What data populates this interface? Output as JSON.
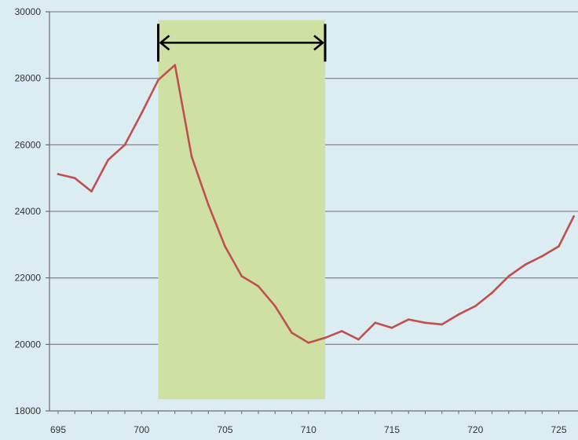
{
  "chart_data": {
    "type": "line",
    "title": "",
    "xlabel": "",
    "ylabel": "",
    "xlim": [
      694.5,
      725.9
    ],
    "ylim": [
      18000,
      30000
    ],
    "x_ticks": [
      695,
      700,
      705,
      710,
      715,
      720,
      725
    ],
    "y_ticks": [
      18000,
      20000,
      22000,
      24000,
      26000,
      28000,
      30000
    ],
    "x_tick_labels": [
      "695",
      "700",
      "705",
      "710",
      "715",
      "720",
      "725"
    ],
    "y_tick_labels": [
      "18000",
      "20000",
      "22000",
      "24000",
      "26000",
      "28000",
      "30000"
    ],
    "grid": "horizontal",
    "legend": "none",
    "series": [
      {
        "color": "#c0504d",
        "x": [
          695,
          696,
          697,
          698,
          699,
          700,
          701,
          702,
          703,
          704,
          705,
          706,
          707,
          708,
          709,
          710,
          711,
          712,
          713,
          714,
          715,
          716,
          717,
          718,
          719,
          720,
          721,
          722,
          723,
          724,
          725,
          725.9
        ],
        "y": [
          25120,
          25000,
          24600,
          25550,
          26000,
          26950,
          27950,
          28400,
          25650,
          24200,
          22950,
          22050,
          21750,
          21150,
          20350,
          20050,
          20200,
          20400,
          20150,
          20650,
          20500,
          20750,
          20650,
          20600,
          20900,
          21150,
          21550,
          22050,
          22400,
          22650,
          22950,
          23850
        ]
      }
    ],
    "highlight": {
      "x_range": [
        701,
        711
      ],
      "y_range": [
        18350,
        29750
      ],
      "color": "#cfe0a3",
      "arrow_y": 29070
    },
    "colors": {
      "background": "#dbecf3",
      "grid": "#8c8c8c",
      "axis": "#6b6b6b",
      "arrow": "#000000"
    }
  }
}
